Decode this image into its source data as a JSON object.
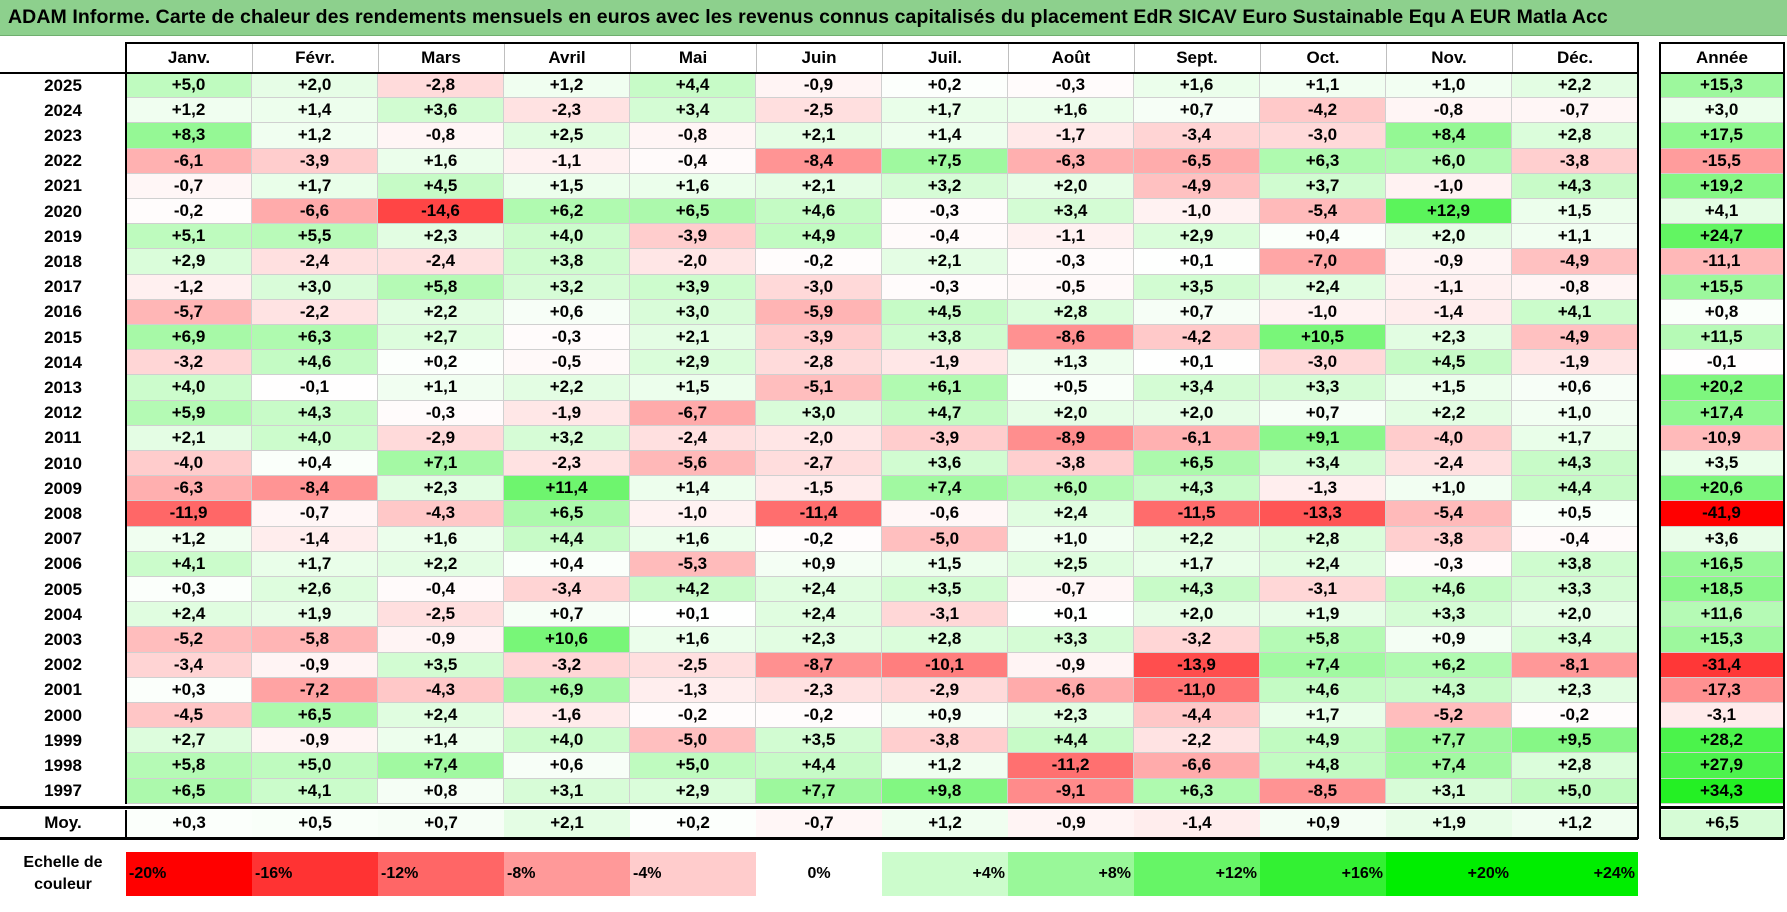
{
  "title": "ADAM Informe. Carte de chaleur des rendements mensuels en euros avec les revenus connus capitalisés du placement EdR SICAV Euro Sustainable Equ A EUR Matla Acc",
  "chart_data": {
    "type": "heatmap",
    "months": [
      "Janv.",
      "Févr.",
      "Mars",
      "Avril",
      "Mai",
      "Juin",
      "Juil.",
      "Août",
      "Sept.",
      "Oct.",
      "Nov.",
      "Déc."
    ],
    "year_header": "Année",
    "rows": [
      {
        "year": "2025",
        "values": [
          "+5,0",
          "+2,0",
          "-2,8",
          "+1,2",
          "+4,4",
          "-0,9",
          "+0,2",
          "-0,3",
          "+1,6",
          "+1,1",
          "+1,0",
          "+2,2"
        ],
        "annual": "+15,3"
      },
      {
        "year": "2024",
        "values": [
          "+1,2",
          "+1,4",
          "+3,6",
          "-2,3",
          "+3,4",
          "-2,5",
          "+1,7",
          "+1,6",
          "+0,7",
          "-4,2",
          "-0,8",
          "-0,7"
        ],
        "annual": "+3,0"
      },
      {
        "year": "2023",
        "values": [
          "+8,3",
          "+1,2",
          "-0,8",
          "+2,5",
          "-0,8",
          "+2,1",
          "+1,4",
          "-1,7",
          "-3,4",
          "-3,0",
          "+8,4",
          "+2,8"
        ],
        "annual": "+17,5"
      },
      {
        "year": "2022",
        "values": [
          "-6,1",
          "-3,9",
          "+1,6",
          "-1,1",
          "-0,4",
          "-8,4",
          "+7,5",
          "-6,3",
          "-6,5",
          "+6,3",
          "+6,0",
          "-3,8"
        ],
        "annual": "-15,5"
      },
      {
        "year": "2021",
        "values": [
          "-0,7",
          "+1,7",
          "+4,5",
          "+1,5",
          "+1,6",
          "+2,1",
          "+3,2",
          "+2,0",
          "-4,9",
          "+3,7",
          "-1,0",
          "+4,3"
        ],
        "annual": "+19,2"
      },
      {
        "year": "2020",
        "values": [
          "-0,2",
          "-6,6",
          "-14,6",
          "+6,2",
          "+6,5",
          "+4,6",
          "-0,3",
          "+3,4",
          "-1,0",
          "-5,4",
          "+12,9",
          "+1,5"
        ],
        "annual": "+4,1"
      },
      {
        "year": "2019",
        "values": [
          "+5,1",
          "+5,5",
          "+2,3",
          "+4,0",
          "-3,9",
          "+4,9",
          "-0,4",
          "-1,1",
          "+2,9",
          "+0,4",
          "+2,0",
          "+1,1"
        ],
        "annual": "+24,7"
      },
      {
        "year": "2018",
        "values": [
          "+2,9",
          "-2,4",
          "-2,4",
          "+3,8",
          "-2,0",
          "-0,2",
          "+2,1",
          "-0,3",
          "+0,1",
          "-7,0",
          "-0,9",
          "-4,9"
        ],
        "annual": "-11,1"
      },
      {
        "year": "2017",
        "values": [
          "-1,2",
          "+3,0",
          "+5,8",
          "+3,2",
          "+3,9",
          "-3,0",
          "-0,3",
          "-0,5",
          "+3,5",
          "+2,4",
          "-1,1",
          "-0,8"
        ],
        "annual": "+15,5"
      },
      {
        "year": "2016",
        "values": [
          "-5,7",
          "-2,2",
          "+2,2",
          "+0,6",
          "+3,0",
          "-5,9",
          "+4,5",
          "+2,8",
          "+0,7",
          "-1,0",
          "-1,4",
          "+4,1"
        ],
        "annual": "+0,8"
      },
      {
        "year": "2015",
        "values": [
          "+6,9",
          "+6,3",
          "+2,7",
          "-0,3",
          "+2,1",
          "-3,9",
          "+3,8",
          "-8,6",
          "-4,2",
          "+10,5",
          "+2,3",
          "-4,9"
        ],
        "annual": "+11,5"
      },
      {
        "year": "2014",
        "values": [
          "-3,2",
          "+4,6",
          "+0,2",
          "-0,5",
          "+2,9",
          "-2,8",
          "-1,9",
          "+1,3",
          "+0,1",
          "-3,0",
          "+4,5",
          "-1,9"
        ],
        "annual": "-0,1"
      },
      {
        "year": "2013",
        "values": [
          "+4,0",
          "-0,1",
          "+1,1",
          "+2,2",
          "+1,5",
          "-5,1",
          "+6,1",
          "+0,5",
          "+3,4",
          "+3,3",
          "+1,5",
          "+0,6"
        ],
        "annual": "+20,2"
      },
      {
        "year": "2012",
        "values": [
          "+5,9",
          "+4,3",
          "-0,3",
          "-1,9",
          "-6,7",
          "+3,0",
          "+4,7",
          "+2,0",
          "+2,0",
          "+0,7",
          "+2,2",
          "+1,0"
        ],
        "annual": "+17,4"
      },
      {
        "year": "2011",
        "values": [
          "+2,1",
          "+4,0",
          "-2,9",
          "+3,2",
          "-2,4",
          "-2,0",
          "-3,9",
          "-8,9",
          "-6,1",
          "+9,1",
          "-4,0",
          "+1,7"
        ],
        "annual": "-10,9"
      },
      {
        "year": "2010",
        "values": [
          "-4,0",
          "+0,4",
          "+7,1",
          "-2,3",
          "-5,6",
          "-2,7",
          "+3,6",
          "-3,8",
          "+6,5",
          "+3,4",
          "-2,4",
          "+4,3"
        ],
        "annual": "+3,5"
      },
      {
        "year": "2009",
        "values": [
          "-6,3",
          "-8,4",
          "+2,3",
          "+11,4",
          "+1,4",
          "-1,5",
          "+7,4",
          "+6,0",
          "+4,3",
          "-1,3",
          "+1,0",
          "+4,4"
        ],
        "annual": "+20,6"
      },
      {
        "year": "2008",
        "values": [
          "-11,9",
          "-0,7",
          "-4,3",
          "+6,5",
          "-1,0",
          "-11,4",
          "-0,6",
          "+2,4",
          "-11,5",
          "-13,3",
          "-5,4",
          "+0,5"
        ],
        "annual": "-41,9"
      },
      {
        "year": "2007",
        "values": [
          "+1,2",
          "-1,4",
          "+1,6",
          "+4,4",
          "+1,6",
          "-0,2",
          "-5,0",
          "+1,0",
          "+2,2",
          "+2,8",
          "-3,8",
          "-0,4"
        ],
        "annual": "+3,6"
      },
      {
        "year": "2006",
        "values": [
          "+4,1",
          "+1,7",
          "+2,2",
          "+0,4",
          "-5,3",
          "+0,9",
          "+1,5",
          "+2,5",
          "+1,7",
          "+2,4",
          "-0,3",
          "+3,8"
        ],
        "annual": "+16,5"
      },
      {
        "year": "2005",
        "values": [
          "+0,3",
          "+2,6",
          "-0,4",
          "-3,4",
          "+4,2",
          "+2,4",
          "+3,5",
          "-0,7",
          "+4,3",
          "-3,1",
          "+4,6",
          "+3,3"
        ],
        "annual": "+18,5"
      },
      {
        "year": "2004",
        "values": [
          "+2,4",
          "+1,9",
          "-2,5",
          "+0,7",
          "+0,1",
          "+2,4",
          "-3,1",
          "+0,1",
          "+2,0",
          "+1,9",
          "+3,3",
          "+2,0"
        ],
        "annual": "+11,6"
      },
      {
        "year": "2003",
        "values": [
          "-5,2",
          "-5,8",
          "-0,9",
          "+10,6",
          "+1,6",
          "+2,3",
          "+2,8",
          "+3,3",
          "-3,2",
          "+5,8",
          "+0,9",
          "+3,4"
        ],
        "annual": "+15,3"
      },
      {
        "year": "2002",
        "values": [
          "-3,4",
          "-0,9",
          "+3,5",
          "-3,2",
          "-2,5",
          "-8,7",
          "-10,1",
          "-0,9",
          "-13,9",
          "+7,4",
          "+6,2",
          "-8,1"
        ],
        "annual": "-31,4"
      },
      {
        "year": "2001",
        "values": [
          "+0,3",
          "-7,2",
          "-4,3",
          "+6,9",
          "-1,3",
          "-2,3",
          "-2,9",
          "-6,6",
          "-11,0",
          "+4,6",
          "+4,3",
          "+2,3"
        ],
        "annual": "-17,3"
      },
      {
        "year": "2000",
        "values": [
          "-4,5",
          "+6,5",
          "+2,4",
          "-1,6",
          "-0,2",
          "-0,2",
          "+0,9",
          "+2,3",
          "-4,4",
          "+1,7",
          "-5,2",
          "-0,2"
        ],
        "annual": "-3,1"
      },
      {
        "year": "1999",
        "values": [
          "+2,7",
          "-0,9",
          "+1,4",
          "+4,0",
          "-5,0",
          "+3,5",
          "-3,8",
          "+4,4",
          "-2,2",
          "+4,9",
          "+7,7",
          "+9,5"
        ],
        "annual": "+28,2"
      },
      {
        "year": "1998",
        "values": [
          "+5,8",
          "+5,0",
          "+7,4",
          "+0,6",
          "+5,0",
          "+4,4",
          "+1,2",
          "-11,2",
          "-6,6",
          "+4,8",
          "+7,4",
          "+2,8"
        ],
        "annual": "+27,9"
      },
      {
        "year": "1997",
        "values": [
          "+6,5",
          "+4,1",
          "+0,8",
          "+3,1",
          "+2,9",
          "+7,7",
          "+9,8",
          "-9,1",
          "+6,3",
          "-8,5",
          "+3,1",
          "+5,0"
        ],
        "annual": "+34,3"
      }
    ],
    "average": {
      "label": "Moy.",
      "values": [
        "+0,3",
        "+0,5",
        "+0,7",
        "+2,1",
        "+0,2",
        "-0,7",
        "+1,2",
        "-0,9",
        "-1,4",
        "+0,9",
        "+1,9",
        "+1,2"
      ],
      "annual": "+6,5"
    },
    "scale": {
      "label_line1": "Echelle de",
      "label_line2": "couleur",
      "steps": [
        "-20%",
        "-16%",
        "-12%",
        "-8%",
        "-4%",
        "0%",
        "+4%",
        "+8%",
        "+12%",
        "+16%",
        "+20%",
        "+24%"
      ],
      "step_values": [
        -20,
        -16,
        -12,
        -8,
        -4,
        0,
        4,
        8,
        12,
        16,
        20,
        24
      ]
    },
    "colors": {
      "negative_max": "#ff0000",
      "neutral": "#ffffff",
      "positive_max": "#00ee00"
    }
  }
}
